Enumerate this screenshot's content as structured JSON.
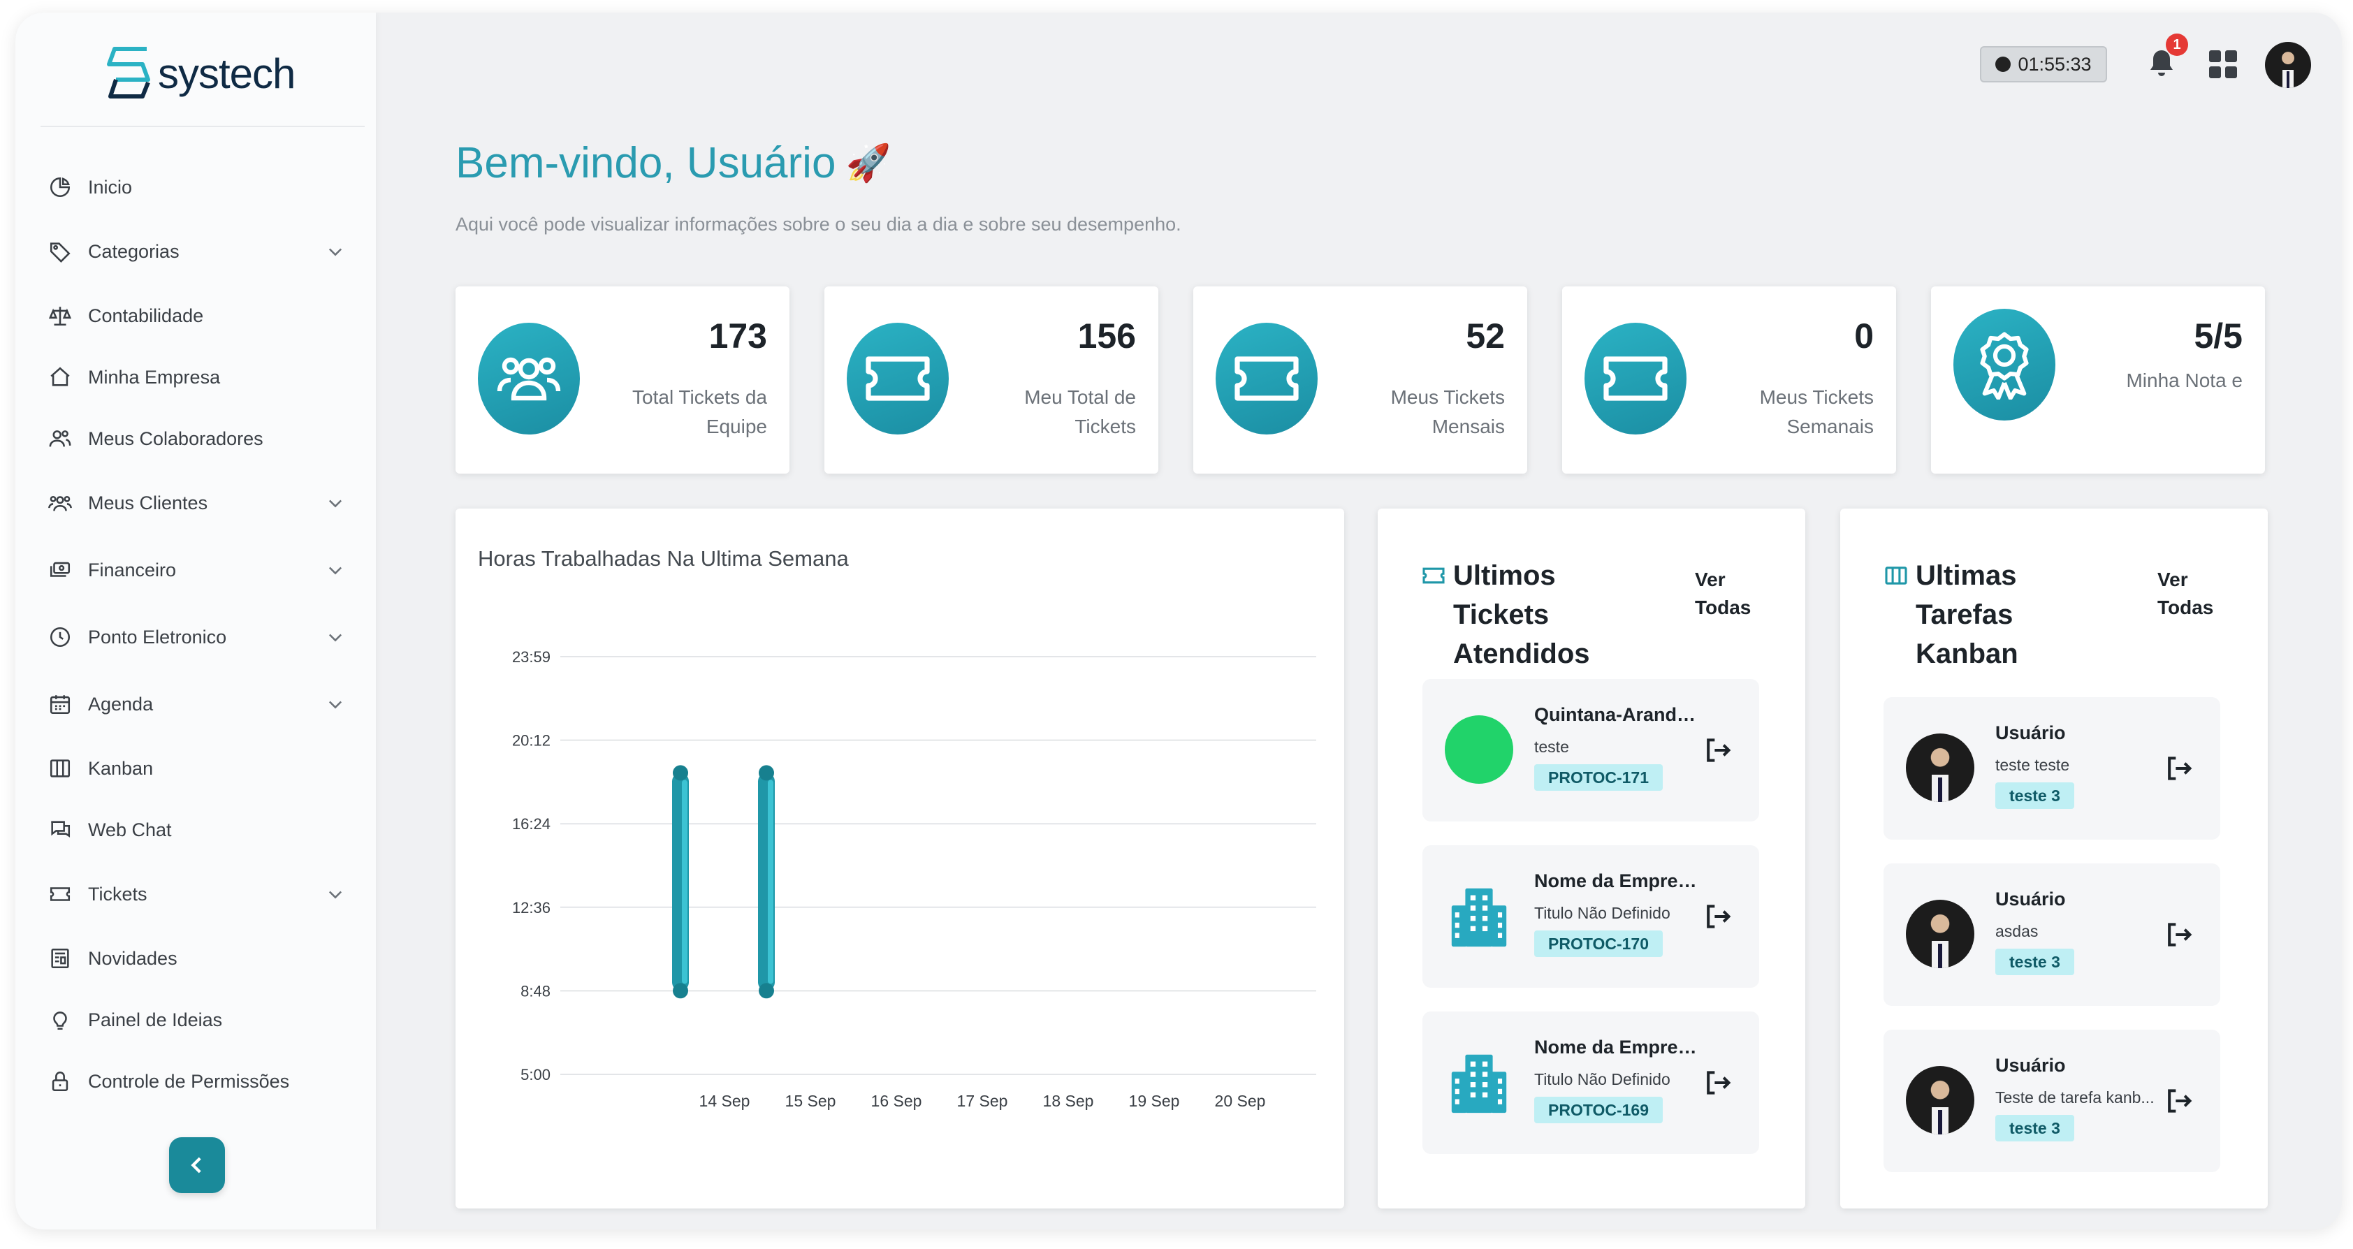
{
  "app": {
    "logo_text": "systech"
  },
  "sidebar": {
    "items": [
      {
        "label": "Inicio",
        "icon": "chart-pie-icon",
        "has_children": false
      },
      {
        "label": "Categorias",
        "icon": "tag-icon",
        "has_children": true
      },
      {
        "label": "Contabilidade",
        "icon": "scale-icon",
        "has_children": false
      },
      {
        "label": "Minha Empresa",
        "icon": "home-icon",
        "has_children": false
      },
      {
        "label": "Meus Colaboradores",
        "icon": "users-icon",
        "has_children": false
      },
      {
        "label": "Meus Clientes",
        "icon": "users-group-icon",
        "has_children": true
      },
      {
        "label": "Financeiro",
        "icon": "cash-icon",
        "has_children": true
      },
      {
        "label": "Ponto Eletronico",
        "icon": "clock-icon",
        "has_children": true
      },
      {
        "label": "Agenda",
        "icon": "calendar-icon",
        "has_children": true
      },
      {
        "label": "Kanban",
        "icon": "columns-icon",
        "has_children": false
      },
      {
        "label": "Web Chat",
        "icon": "chat-icon",
        "has_children": false
      },
      {
        "label": "Tickets",
        "icon": "ticket-icon",
        "has_children": true
      },
      {
        "label": "Novidades",
        "icon": "news-icon",
        "has_children": false
      },
      {
        "label": "Painel de Ideias",
        "icon": "bulb-icon",
        "has_children": false
      },
      {
        "label": "Controle de Permissões",
        "icon": "lock-icon",
        "has_children": false
      }
    ]
  },
  "topbar": {
    "timer": "01:55:33",
    "notifications": "1"
  },
  "welcome": {
    "title": "Bem-vindo, Usuário",
    "emoji": "🚀",
    "subtitle": "Aqui você pode visualizar informações sobre o seu dia a dia e sobre seu desempenho."
  },
  "stats": [
    {
      "value": "173",
      "label": "Total Tickets da Equipe",
      "icon": "team-icon"
    },
    {
      "value": "156",
      "label": "Meu Total de Tickets",
      "icon": "ticket-icon"
    },
    {
      "value": "52",
      "label": "Meus Tickets Mensais",
      "icon": "ticket-icon"
    },
    {
      "value": "0",
      "label": "Meus Tickets Semanais",
      "icon": "ticket-icon"
    },
    {
      "value": "5/5",
      "label": "Minha Nota e",
      "icon": "award-icon"
    }
  ],
  "chart_data": {
    "type": "bar",
    "title": "Horas Trabalhadas Na Ultima Semana",
    "categories": [
      "14 Sep",
      "15 Sep",
      "16 Sep",
      "17 Sep",
      "18 Sep",
      "19 Sep",
      "20 Sep"
    ],
    "y_ticks": [
      "5:00",
      "8:48",
      "12:36",
      "16:24",
      "20:12",
      "23:59"
    ],
    "y_range_hours": [
      5.0,
      23.983
    ],
    "series": [
      {
        "ranges": [
          [
            8.8,
            18.7
          ],
          [
            8.8,
            18.7
          ],
          null,
          null,
          null,
          null,
          null
        ]
      }
    ],
    "color": "#1f97a8",
    "grid": true
  },
  "tickets": {
    "title": "Ultimos Tickets Atendidos",
    "view_all": "Ver Todas",
    "items": [
      {
        "title": "Quintana-Aranda ...",
        "subtitle": "teste",
        "tag": "PROTOC-171",
        "thumb": "green-dot"
      },
      {
        "title": "Nome da Empres...",
        "subtitle": "Titulo Não Definido",
        "tag": "PROTOC-170",
        "thumb": "building-icon"
      },
      {
        "title": "Nome da Empres...",
        "subtitle": "Titulo Não Definido",
        "tag": "PROTOC-169",
        "thumb": "building-icon"
      }
    ]
  },
  "kanban": {
    "title": "Ultimas Tarefas Kanban",
    "view_all": "Ver Todas",
    "items": [
      {
        "title": "Usuário",
        "subtitle": "teste teste",
        "tag": "teste 3"
      },
      {
        "title": "Usuário",
        "subtitle": "asdas",
        "tag": "teste 3"
      },
      {
        "title": "Usuário",
        "subtitle": "Teste de tarefa kanb...",
        "tag": "teste 3"
      }
    ]
  }
}
